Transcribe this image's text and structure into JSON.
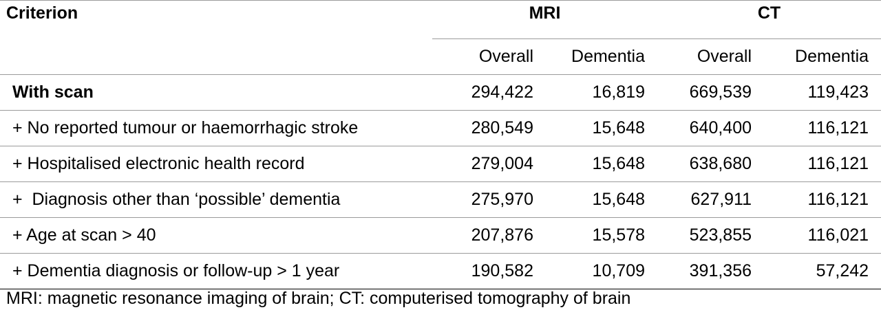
{
  "table": {
    "header": {
      "criterion": "Criterion",
      "groups": [
        "MRI",
        "CT"
      ],
      "subheaders": [
        "Overall",
        "Dementia",
        "Overall",
        "Dementia"
      ]
    },
    "rows": [
      {
        "label": "With scan",
        "values": [
          "294,422",
          "16,819",
          "669,539",
          "119,423"
        ]
      },
      {
        "label": "+ No reported tumour or haemorrhagic stroke",
        "values": [
          "280,549",
          "15,648",
          "640,400",
          "116,121"
        ]
      },
      {
        "label": "+ Hospitalised electronic health record",
        "values": [
          "279,004",
          "15,648",
          "638,680",
          "116,121"
        ]
      },
      {
        "label": "+  Diagnosis other than ‘possible’ dementia",
        "values": [
          "275,970",
          "15,648",
          "627,911",
          "116,121"
        ]
      },
      {
        "label": "+ Age at scan > 40",
        "values": [
          "207,876",
          "15,578",
          "523,855",
          "116,021"
        ]
      },
      {
        "label": "+ Dementia diagnosis or follow-up > 1 year",
        "values": [
          "190,582",
          "10,709",
          "391,356",
          "57,242"
        ]
      }
    ]
  },
  "footnote": "MRI: magnetic resonance imaging of brain; CT: computerised tomography of brain"
}
